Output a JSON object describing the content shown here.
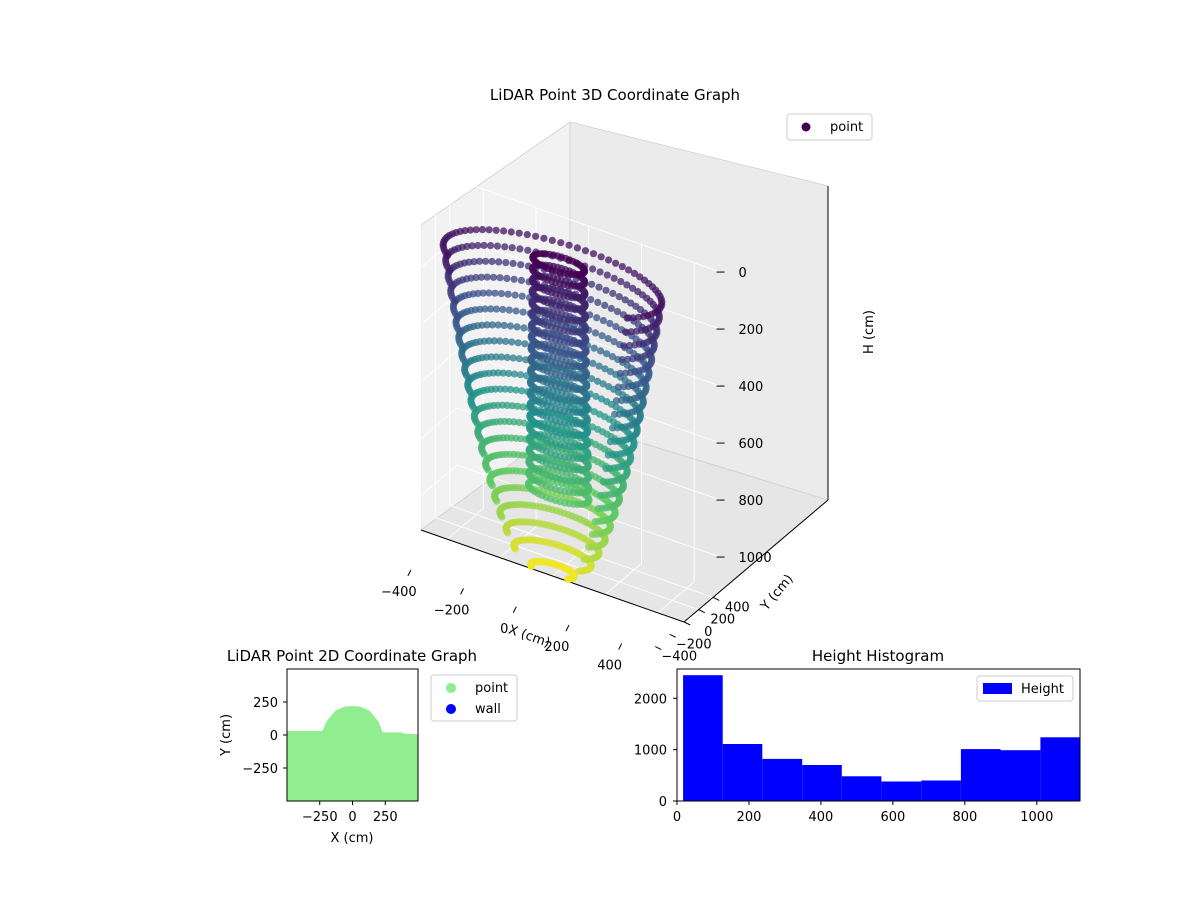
{
  "chart_data": [
    {
      "type": "scatter",
      "projection": "3d",
      "title": "LiDAR Point 3D Coordinate Graph",
      "xlabel": "X (cm)",
      "ylabel": "Y (cm)",
      "zlabel": "H (cm)",
      "x_ticks": [
        -400,
        -200,
        0,
        200,
        400
      ],
      "y_ticks": [
        -400,
        -200,
        0,
        200,
        400
      ],
      "z_ticks": [
        0,
        200,
        400,
        600,
        800,
        1000
      ],
      "xlim": [
        -500,
        500
      ],
      "ylim": [
        -500,
        500
      ],
      "zlim": [
        1120,
        0
      ],
      "z_inverted": true,
      "colormap": "viridis",
      "legend": [
        "point"
      ],
      "legend_position": "upper-right",
      "grid": true,
      "shapes": [
        {
          "shape": "bowl",
          "note": "points ring at ~400 cm radius, heights 0–1100 cm"
        },
        {
          "shape": "column",
          "note": "cylinder of points near center, radius ~100 cm, heights 0–800 cm"
        }
      ]
    },
    {
      "type": "scatter",
      "title": "LiDAR Point 2D Coordinate Graph",
      "xlabel": "X (cm)",
      "ylabel": "Y (cm)",
      "x_ticks": [
        -250,
        0,
        250
      ],
      "y_ticks": [
        -250,
        0,
        250
      ],
      "xlim": [
        -500,
        500
      ],
      "ylim": [
        -500,
        500
      ],
      "series": [
        {
          "name": "point",
          "color": "#90ee90"
        },
        {
          "name": "wall",
          "color": "#0000ff"
        }
      ],
      "fill_outline": [
        [
          -500,
          30
        ],
        [
          -230,
          30
        ],
        [
          -200,
          100
        ],
        [
          -130,
          185
        ],
        [
          -60,
          215
        ],
        [
          0,
          220
        ],
        [
          60,
          215
        ],
        [
          130,
          185
        ],
        [
          200,
          100
        ],
        [
          230,
          20
        ],
        [
          370,
          20
        ],
        [
          400,
          10
        ],
        [
          500,
          5
        ],
        [
          500,
          -500
        ],
        [
          -500,
          -500
        ]
      ],
      "legend_position": "outside-right",
      "grid": false
    },
    {
      "type": "bar",
      "subtype": "histogram",
      "title": "Height Histogram",
      "series": [
        {
          "name": "Height",
          "color": "#0000ff"
        }
      ],
      "bin_edges": [
        17,
        127,
        237,
        348,
        458,
        568,
        679,
        789,
        899,
        1010,
        1120
      ],
      "values": [
        2450,
        1110,
        820,
        700,
        480,
        380,
        400,
        1010,
        990,
        1240
      ],
      "x_ticks": [
        0,
        200,
        400,
        600,
        800,
        1000
      ],
      "y_ticks": [
        0,
        1000,
        2000
      ],
      "xlim": [
        0,
        1120
      ],
      "ylim": [
        0,
        2570
      ],
      "legend_position": "upper-right",
      "grid": false
    }
  ]
}
